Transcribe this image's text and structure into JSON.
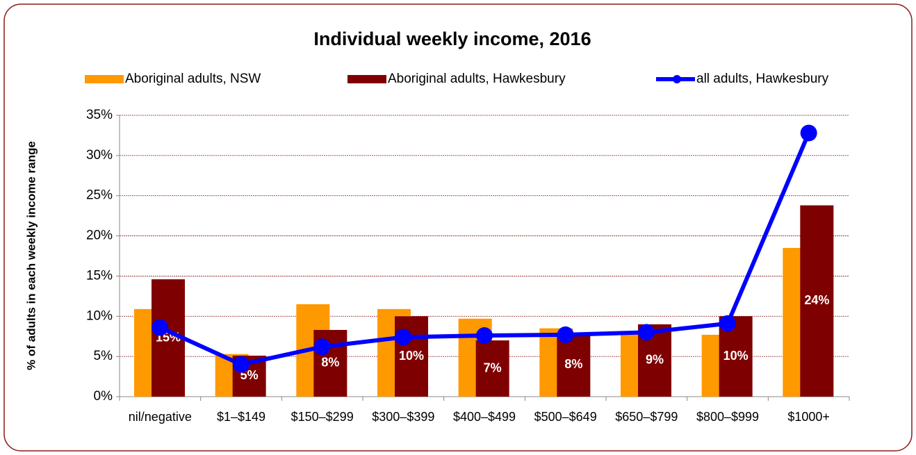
{
  "chart_data": {
    "type": "bar-line",
    "title": "Individual weekly income, 2016",
    "y_label": "% of adults in each weekly income range",
    "categories": [
      "nil/negative",
      "$1–$149",
      "$150–$299",
      "$300–$399",
      "$400–$499",
      "$500–$649",
      "$650–$799",
      "$800–$999",
      "$1000+"
    ],
    "series": [
      {
        "name": "Aboriginal adults, NSW",
        "kind": "bar",
        "color": "#ff9900",
        "values": [
          10.9,
          5.3,
          11.5,
          10.9,
          9.7,
          8.5,
          8.1,
          7.7,
          18.5
        ]
      },
      {
        "name": "Aboriginal adults, Hawkesbury",
        "kind": "bar",
        "color": "#7f0000",
        "values": [
          14.6,
          5.1,
          8.3,
          10.0,
          7.0,
          7.9,
          9.0,
          10.0,
          23.8
        ],
        "value_labels": [
          "15%",
          "5%",
          "8%",
          "10%",
          "7%",
          "8%",
          "9%",
          "10%",
          "24%"
        ]
      },
      {
        "name": "all adults, Hawkesbury",
        "kind": "line",
        "color": "#0000ff",
        "values": [
          8.6,
          4.0,
          6.2,
          7.4,
          7.6,
          7.7,
          8.0,
          9.1,
          32.8
        ]
      }
    ],
    "ylim": [
      0,
      35
    ],
    "yticks": [
      {
        "value": 0,
        "label": "0%"
      },
      {
        "value": 5,
        "label": "5%"
      },
      {
        "value": 10,
        "label": "10%"
      },
      {
        "value": 15,
        "label": "15%"
      },
      {
        "value": 20,
        "label": "20%"
      },
      {
        "value": 25,
        "label": "25%"
      },
      {
        "value": 30,
        "label": "30%"
      },
      {
        "value": 35,
        "label": "35%"
      }
    ],
    "grid": true,
    "legend": "top"
  }
}
